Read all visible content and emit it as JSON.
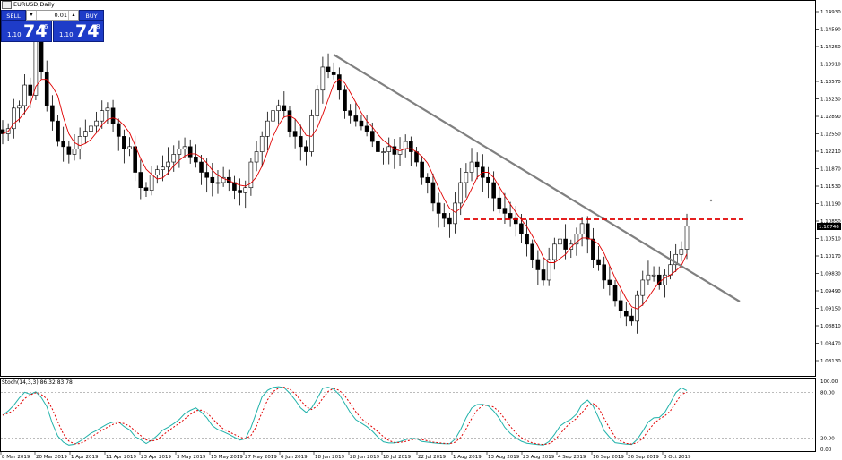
{
  "window": {
    "title": "EURUSD,Daily"
  },
  "trade_panel": {
    "sell_label": "SELL",
    "buy_label": "BUY",
    "lot_value": "0.01",
    "sell_price": {
      "prefix": "1.10",
      "big": "74",
      "sup": "6"
    },
    "buy_price": {
      "prefix": "1.10",
      "big": "74",
      "sup": "8"
    }
  },
  "price_axis": {
    "labels": [
      "1.14930",
      "1.14590",
      "1.14250",
      "1.13910",
      "1.13570",
      "1.13230",
      "1.12890",
      "1.12550",
      "1.12210",
      "1.11870",
      "1.11530",
      "1.11190",
      "1.10850",
      "1.10510",
      "1.10170",
      "1.09830",
      "1.09490",
      "1.09150",
      "1.08810",
      "1.08470",
      "1.08130"
    ],
    "current_price": "1.10746"
  },
  "stoch_axis": {
    "labels": [
      "100.00",
      "80.00",
      "20.00",
      "0.00"
    ]
  },
  "stoch_label": "Stoch(14,3,3) 86.32 83.78",
  "time_axis": {
    "labels": [
      "8 Mar 2019",
      "20 Mar 2019",
      "1 Apr 2019",
      "11 Apr 2019",
      "23 Apr 2019",
      "3 May 2019",
      "15 May 2019",
      "27 May 2019",
      "6 Jun 2019",
      "18 Jun 2019",
      "28 Jun 2019",
      "10 Jul 2019",
      "22 Jul 2019",
      "1 Aug 2019",
      "13 Aug 2019",
      "23 Aug 2019",
      "4 Sep 2019",
      "16 Sep 2019",
      "26 Sep 2019",
      "8 Oct 2019"
    ]
  },
  "colors": {
    "candle": "#000000",
    "ma_line": "#e00000",
    "trendline": "#808080",
    "resistance": "#e00000",
    "stoch_main": "#20b2aa",
    "stoch_signal": "#e00000"
  },
  "chart_data": {
    "type": "candlestick",
    "symbol": "EURUSD",
    "timeframe": "Daily",
    "ylim": [
      1.0813,
      1.1493
    ],
    "resistance_level": 1.108,
    "trendline": {
      "from": {
        "date": "18 Jun 2019",
        "price": 1.1397
      },
      "to": {
        "date": "22 Oct 2019",
        "price": 1.093
      }
    },
    "close_approx": [
      1.1255,
      1.1265,
      1.1305,
      1.131,
      1.135,
      1.133,
      1.144,
      1.1375,
      1.131,
      1.128,
      1.124,
      1.123,
      1.1215,
      1.1225,
      1.125,
      1.126,
      1.127,
      1.128,
      1.13,
      1.1305,
      1.1275,
      1.125,
      1.1225,
      1.123,
      1.118,
      1.115,
      1.1145,
      1.1175,
      1.1185,
      1.119,
      1.12,
      1.1215,
      1.1225,
      1.123,
      1.121,
      1.12,
      1.118,
      1.117,
      1.116,
      1.116,
      1.117,
      1.116,
      1.1145,
      1.114,
      1.115,
      1.12,
      1.122,
      1.125,
      1.128,
      1.13,
      1.131,
      1.13,
      1.126,
      1.125,
      1.123,
      1.122,
      1.129,
      1.134,
      1.1385,
      1.1375,
      1.137,
      1.134,
      1.13,
      1.129,
      1.128,
      1.127,
      1.126,
      1.124,
      1.122,
      1.122,
      1.123,
      1.1215,
      1.1225,
      1.124,
      1.122,
      1.12,
      1.117,
      1.116,
      1.112,
      1.11,
      1.109,
      1.108,
      1.112,
      1.116,
      1.118,
      1.12,
      1.119,
      1.117,
      1.116,
      1.113,
      1.111,
      1.11,
      1.109,
      1.108,
      1.106,
      1.104,
      1.101,
      1.099,
      1.097,
      1.101,
      1.104,
      1.105,
      1.103,
      1.104,
      1.106,
      1.108,
      1.105,
      1.101,
      1.1,
      1.097,
      1.096,
      1.093,
      1.091,
      1.09,
      1.089,
      1.094,
      1.097,
      1.098,
      1.098,
      1.096,
      1.098,
      1.1,
      1.102,
      1.103,
      1.1075
    ],
    "stoch_main": {
      "name": "Stoch main",
      "current": 86.32
    },
    "stoch_signal": {
      "name": "Stoch signal",
      "current": 83.78
    }
  }
}
